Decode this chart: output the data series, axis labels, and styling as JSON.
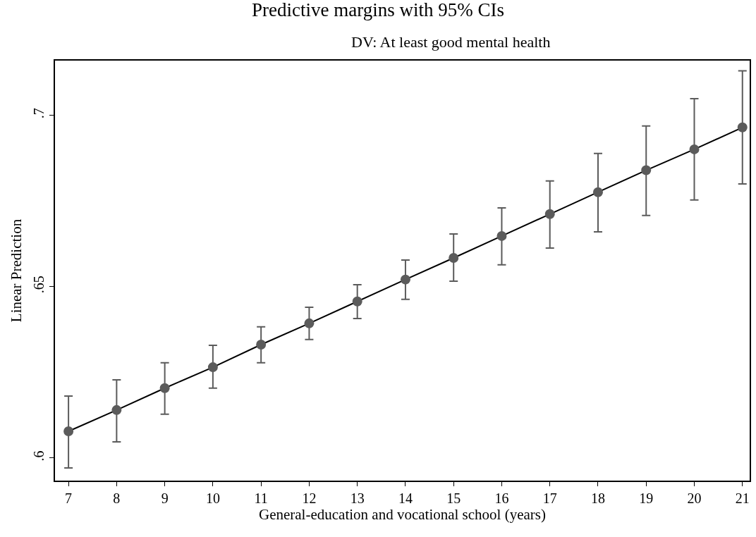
{
  "chart_data": {
    "type": "line",
    "title": "Predictive margins with 95% CIs",
    "subtitle": "DV: At least good mental health",
    "xlabel": "General-education and vocational school (years)",
    "ylabel": "Linear Prediction",
    "x": [
      7,
      8,
      9,
      10,
      11,
      12,
      13,
      14,
      15,
      16,
      17,
      18,
      19,
      20,
      21
    ],
    "series": [
      {
        "color": "#5b5b5b",
        "values": [
          0.6078,
          0.614,
          0.6204,
          0.6265,
          0.6331,
          0.6393,
          0.6457,
          0.6521,
          0.6584,
          0.6648,
          0.6712,
          0.6776,
          0.684,
          0.6901,
          0.6965
        ],
        "errors": [
          [
            0.5971,
            0.6181
          ],
          [
            0.6047,
            0.6228
          ],
          [
            0.6128,
            0.6278
          ],
          [
            0.6204,
            0.6329
          ],
          [
            0.6278,
            0.6383
          ],
          [
            0.6346,
            0.644
          ],
          [
            0.6407,
            0.6506
          ],
          [
            0.6463,
            0.6578
          ],
          [
            0.6516,
            0.6654
          ],
          [
            0.6564,
            0.673
          ],
          [
            0.6613,
            0.6809
          ],
          [
            0.666,
            0.6889
          ],
          [
            0.6708,
            0.6969
          ],
          [
            0.6753,
            0.7049
          ],
          [
            0.68,
            0.713
          ]
        ]
      }
    ],
    "marker": "circle",
    "line_style": "solid",
    "xlim": [
      6.72,
      21.15
    ],
    "xticks": [
      7,
      8,
      9,
      10,
      11,
      12,
      13,
      14,
      15,
      16,
      17,
      18,
      19,
      20,
      21
    ],
    "ylim": [
      0.5934,
      0.716
    ],
    "yticks": [
      {
        "value": 0.6,
        "label": ".6"
      },
      {
        "value": 0.65,
        "label": ".65"
      },
      {
        "value": 0.7,
        "label": ".7"
      }
    ]
  }
}
